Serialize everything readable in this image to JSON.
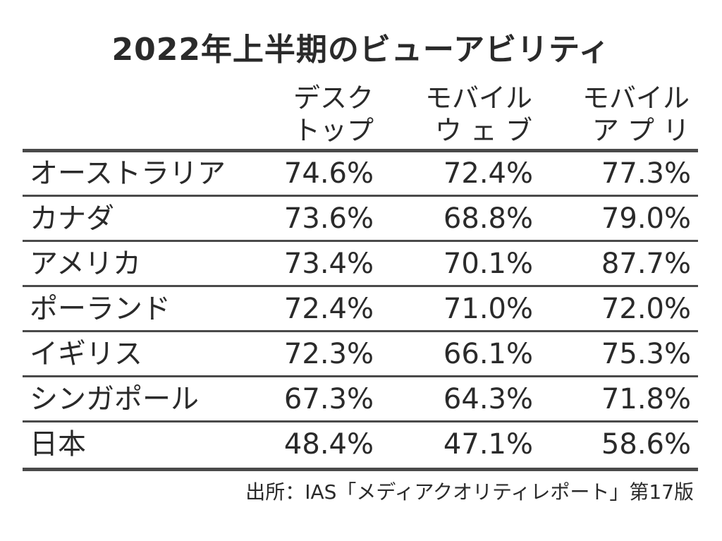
{
  "chart_data": {
    "type": "table",
    "title": "2022年上半期のビューアビリティ",
    "columns": [
      {
        "line1": "デスク",
        "line2": "トップ"
      },
      {
        "line1": "モバイル",
        "line2": "ウ ェ ブ"
      },
      {
        "line1": "モバイル",
        "line2": "ア プ リ"
      }
    ],
    "rows": [
      {
        "country": "オーストラリア",
        "values": [
          "74.6%",
          "72.4%",
          "77.3%"
        ]
      },
      {
        "country": "カナダ",
        "values": [
          "73.6%",
          "68.8%",
          "79.0%"
        ]
      },
      {
        "country": "アメリカ",
        "values": [
          "73.4%",
          "70.1%",
          "87.7%"
        ]
      },
      {
        "country": "ポーランド",
        "values": [
          "72.4%",
          "71.0%",
          "72.0%"
        ]
      },
      {
        "country": "イギリス",
        "values": [
          "72.3%",
          "66.1%",
          "75.3%"
        ]
      },
      {
        "country": "シンガポール",
        "values": [
          "67.3%",
          "64.3%",
          "71.8%"
        ]
      },
      {
        "country": "日本",
        "values": [
          "48.4%",
          "47.1%",
          "58.6%"
        ]
      }
    ],
    "source": "出所：IAS「メディアクオリティレポート」第17版"
  }
}
